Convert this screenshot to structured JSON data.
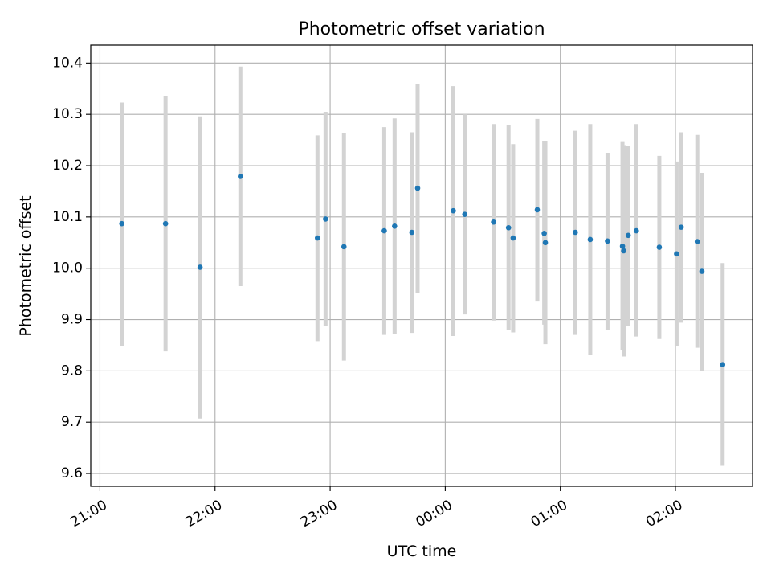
{
  "chart_data": {
    "type": "scatter",
    "title": "Photometric offset variation",
    "xlabel": "UTC time",
    "ylabel": "Photometric offset",
    "xlim_hours": [
      20.92,
      26.67
    ],
    "ylim": [
      9.575,
      10.435
    ],
    "x_ticks": [
      {
        "h": 21,
        "label": "21:00"
      },
      {
        "h": 22,
        "label": "22:00"
      },
      {
        "h": 23,
        "label": "23:00"
      },
      {
        "h": 24,
        "label": "00:00"
      },
      {
        "h": 25,
        "label": "01:00"
      },
      {
        "h": 26,
        "label": "02:00"
      }
    ],
    "y_ticks": [
      {
        "v": 9.6,
        "label": "9.6"
      },
      {
        "v": 9.7,
        "label": "9.7"
      },
      {
        "v": 9.8,
        "label": "9.8"
      },
      {
        "v": 9.9,
        "label": "9.9"
      },
      {
        "v": 10.0,
        "label": "10.0"
      },
      {
        "v": 10.1,
        "label": "10.1"
      },
      {
        "v": 10.2,
        "label": "10.2"
      },
      {
        "v": 10.3,
        "label": "10.3"
      },
      {
        "v": 10.4,
        "label": "10.4"
      }
    ],
    "grid": true,
    "marker_color": "#1f77b4",
    "errorbar_color": "#d3d3d3",
    "points": [
      {
        "t": 21.19,
        "y": 10.087,
        "lo": 9.848,
        "hi": 10.323
      },
      {
        "t": 21.57,
        "y": 10.087,
        "lo": 9.838,
        "hi": 10.335
      },
      {
        "t": 21.87,
        "y": 10.002,
        "lo": 9.707,
        "hi": 10.296
      },
      {
        "t": 22.22,
        "y": 10.179,
        "lo": 9.965,
        "hi": 10.393
      },
      {
        "t": 22.89,
        "y": 10.059,
        "lo": 9.858,
        "hi": 10.259
      },
      {
        "t": 22.96,
        "y": 10.096,
        "lo": 9.887,
        "hi": 10.305
      },
      {
        "t": 23.12,
        "y": 10.042,
        "lo": 9.82,
        "hi": 10.264
      },
      {
        "t": 23.47,
        "y": 10.073,
        "lo": 9.87,
        "hi": 10.275
      },
      {
        "t": 23.56,
        "y": 10.082,
        "lo": 9.872,
        "hi": 10.292
      },
      {
        "t": 23.71,
        "y": 10.07,
        "lo": 9.874,
        "hi": 10.265
      },
      {
        "t": 23.76,
        "y": 10.156,
        "lo": 9.951,
        "hi": 10.359
      },
      {
        "t": 24.07,
        "y": 10.112,
        "lo": 9.868,
        "hi": 10.355
      },
      {
        "t": 24.17,
        "y": 10.105,
        "lo": 9.91,
        "hi": 10.3
      },
      {
        "t": 24.42,
        "y": 10.09,
        "lo": 9.898,
        "hi": 10.281
      },
      {
        "t": 24.55,
        "y": 10.079,
        "lo": 9.88,
        "hi": 10.28
      },
      {
        "t": 24.59,
        "y": 10.059,
        "lo": 9.875,
        "hi": 10.242
      },
      {
        "t": 24.8,
        "y": 10.114,
        "lo": 9.935,
        "hi": 10.291
      },
      {
        "t": 24.86,
        "y": 10.068,
        "lo": 9.89,
        "hi": 10.247
      },
      {
        "t": 24.87,
        "y": 10.05,
        "lo": 9.852,
        "hi": 10.247
      },
      {
        "t": 25.13,
        "y": 10.07,
        "lo": 9.87,
        "hi": 10.268
      },
      {
        "t": 25.26,
        "y": 10.056,
        "lo": 9.832,
        "hi": 10.281
      },
      {
        "t": 25.41,
        "y": 10.053,
        "lo": 9.88,
        "hi": 10.225
      },
      {
        "t": 25.54,
        "y": 10.043,
        "lo": 9.84,
        "hi": 10.246
      },
      {
        "t": 25.55,
        "y": 10.034,
        "lo": 9.828,
        "hi": 10.24
      },
      {
        "t": 25.59,
        "y": 10.064,
        "lo": 9.888,
        "hi": 10.239
      },
      {
        "t": 25.66,
        "y": 10.073,
        "lo": 9.867,
        "hi": 10.281
      },
      {
        "t": 25.86,
        "y": 10.041,
        "lo": 9.862,
        "hi": 10.219
      },
      {
        "t": 26.01,
        "y": 10.028,
        "lo": 9.848,
        "hi": 10.208
      },
      {
        "t": 26.05,
        "y": 10.08,
        "lo": 9.894,
        "hi": 10.265
      },
      {
        "t": 26.19,
        "y": 10.052,
        "lo": 9.845,
        "hi": 10.26
      },
      {
        "t": 26.23,
        "y": 9.994,
        "lo": 9.8,
        "hi": 10.186
      },
      {
        "t": 26.41,
        "y": 9.812,
        "lo": 9.615,
        "hi": 10.01
      }
    ]
  }
}
